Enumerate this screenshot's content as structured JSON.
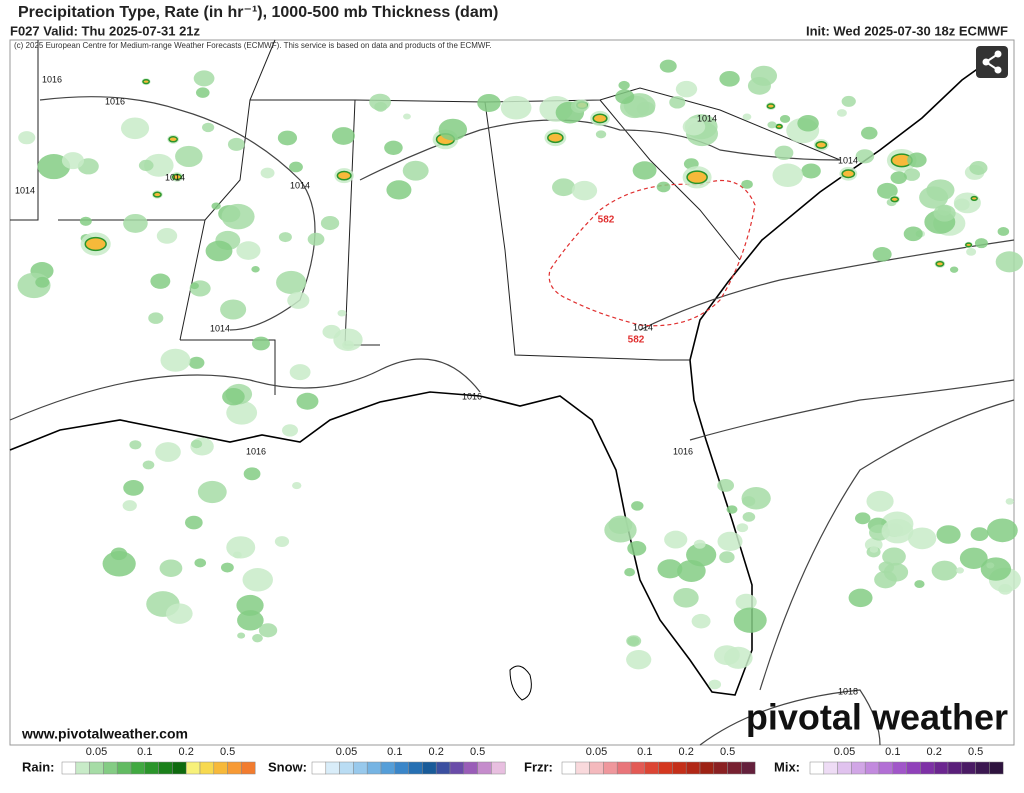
{
  "header": {
    "title": "Precipitation Type, Rate (in hr⁻¹), 1000-500 mb Thickness (dam)",
    "valid": "F027 Valid: Thu 2025-07-31 21z",
    "init": "Init: Wed 2025-07-30 18z ECMWF",
    "copyright": "(c) 2025 European Centre for Medium-range Weather Forecasts (ECMWF). This service is based on data and products of the ECMWF."
  },
  "map": {
    "contour_labels": [
      "1016",
      "1016",
      "1014",
      "1014",
      "1014",
      "1014",
      "1014",
      "1016",
      "1016",
      "1014",
      "1014",
      "1016",
      "1018",
      "582",
      "582"
    ]
  },
  "footer": {
    "website": "www.pivotalweather.com",
    "logo": "pivotal weather"
  },
  "legend": [
    {
      "name": "Rain:",
      "ticks": [
        "0.05",
        "0.1",
        "0.2",
        "0.5"
      ],
      "colors": [
        "#ffffff",
        "#c8ebc8",
        "#a6dca6",
        "#84cc84",
        "#62bb62",
        "#41a941",
        "#2b952b",
        "#1a801a",
        "#0f6a0f",
        "#f7f17a",
        "#f7d94f",
        "#f7b93a",
        "#f79a35",
        "#f27c2f"
      ]
    },
    {
      "name": "Snow:",
      "ticks": [
        "0.05",
        "0.1",
        "0.2",
        "0.5"
      ],
      "colors": [
        "#ffffff",
        "#d9edf9",
        "#b9dcf3",
        "#98c9ec",
        "#76b4e3",
        "#559ed8",
        "#3a86c9",
        "#2670b3",
        "#195b99",
        "#3b4fa0",
        "#6a4ca9",
        "#9a5db8",
        "#c58ccc",
        "#e8bfe0"
      ]
    },
    {
      "name": "Frzr:",
      "ticks": [
        "0.05",
        "0.1",
        "0.2",
        "0.5"
      ],
      "colors": [
        "#ffffff",
        "#f9d9dc",
        "#f4b9bd",
        "#ef979c",
        "#e9757a",
        "#e35a55",
        "#dc4534",
        "#d4371f",
        "#c42f19",
        "#b12716",
        "#9d2214",
        "#8a2022",
        "#772030",
        "#64203c"
      ]
    },
    {
      "name": "Mix:",
      "ticks": [
        "0.05",
        "0.1",
        "0.2",
        "0.5"
      ],
      "colors": [
        "#ffffff",
        "#eedcf5",
        "#e0c2ee",
        "#d1a6e6",
        "#c28ade",
        "#b26fd5",
        "#a156c9",
        "#9041ba",
        "#7e31a6",
        "#6c2690",
        "#5a1f7a",
        "#4a1b64",
        "#3b1750",
        "#2e133e"
      ]
    }
  ]
}
